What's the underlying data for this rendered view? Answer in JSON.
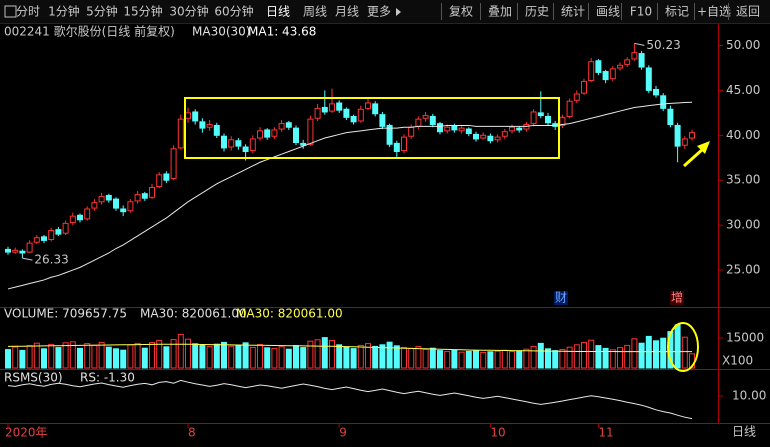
{
  "toolbar": {
    "periods": [
      "分时",
      "1分钟",
      "5分钟",
      "15分钟",
      "30分钟",
      "60分钟",
      "日线",
      "周线",
      "月线",
      "更多"
    ],
    "actions": [
      "复权",
      "叠加",
      "历史",
      "统计",
      "画线",
      "F10",
      "标记",
      "+自选",
      "返回"
    ]
  },
  "info": {
    "stock": "002241 歌尔股份(日线 前复权)",
    "ma_name": "MA30(30)",
    "ma_value": "MA1: 43.68"
  },
  "markers": [
    "财",
    "增"
  ],
  "period_label": "日线",
  "chart_data": [
    {
      "type": "candlestick",
      "up_color": "#ff3232",
      "down_color": "#54fcfc",
      "ylim": [
        21,
        50.5
      ],
      "yticks": [
        {
          "value": 25,
          "label": "25.00"
        },
        {
          "value": 30,
          "label": "30.00"
        },
        {
          "value": 35,
          "label": "35.00"
        },
        {
          "value": 40,
          "label": "40.00"
        },
        {
          "value": 45,
          "label": "45.00"
        },
        {
          "value": 50,
          "label": "50.00"
        }
      ],
      "max_label": "50.23",
      "min_label": "26.33",
      "categories": [
        "2020年",
        null,
        null,
        null,
        null,
        null,
        null,
        null,
        null,
        null,
        null,
        null,
        null,
        null,
        null,
        null,
        null,
        null,
        null,
        null,
        null,
        null,
        null,
        null,
        null,
        "8",
        null,
        null,
        null,
        null,
        null,
        null,
        null,
        null,
        null,
        null,
        null,
        null,
        null,
        null,
        null,
        null,
        null,
        null,
        null,
        null,
        "9",
        null,
        null,
        null,
        null,
        null,
        null,
        null,
        null,
        null,
        null,
        null,
        null,
        null,
        null,
        null,
        null,
        null,
        null,
        null,
        null,
        "10",
        null,
        null,
        null,
        null,
        null,
        null,
        null,
        null,
        null,
        null,
        null,
        null,
        null,
        null,
        "11",
        null,
        null,
        null,
        null,
        null,
        null,
        null,
        null,
        null,
        null,
        null,
        null,
        null
      ],
      "ohlc": [
        [
          27.3,
          27.6,
          26.7,
          27.0
        ],
        [
          27.0,
          27.5,
          26.8,
          27.2
        ],
        [
          27.1,
          27.3,
          26.33,
          26.9
        ],
        [
          27.0,
          28.3,
          26.9,
          28.0
        ],
        [
          28.1,
          28.9,
          27.9,
          28.6
        ],
        [
          28.7,
          28.9,
          28.0,
          28.3
        ],
        [
          28.4,
          29.7,
          28.2,
          29.4
        ],
        [
          29.5,
          29.8,
          28.8,
          29.0
        ],
        [
          29.1,
          30.5,
          28.9,
          30.2
        ],
        [
          30.3,
          31.4,
          30.0,
          31.0
        ],
        [
          31.1,
          31.3,
          30.3,
          30.6
        ],
        [
          30.7,
          32.1,
          30.5,
          31.8
        ],
        [
          31.9,
          32.9,
          31.6,
          32.5
        ],
        [
          32.6,
          33.6,
          32.3,
          33.2
        ],
        [
          33.3,
          33.5,
          32.5,
          32.8
        ],
        [
          32.9,
          33.1,
          31.6,
          31.9
        ],
        [
          31.8,
          32.2,
          31.0,
          31.5
        ],
        [
          31.6,
          32.9,
          31.4,
          32.6
        ],
        [
          32.7,
          33.8,
          32.4,
          33.4
        ],
        [
          33.5,
          33.7,
          32.7,
          33.0
        ],
        [
          33.1,
          34.6,
          32.9,
          34.2
        ],
        [
          34.3,
          35.9,
          34.1,
          35.6
        ],
        [
          35.7,
          36.0,
          34.7,
          35.0
        ],
        [
          35.2,
          38.9,
          35.0,
          38.5
        ],
        [
          38.6,
          42.3,
          38.4,
          41.8
        ],
        [
          41.9,
          43.1,
          41.4,
          42.5
        ],
        [
          42.6,
          42.9,
          41.2,
          41.6
        ],
        [
          41.5,
          41.9,
          40.3,
          40.8
        ],
        [
          40.9,
          41.7,
          40.5,
          41.2
        ],
        [
          41.1,
          41.4,
          39.7,
          40.0
        ],
        [
          39.9,
          40.2,
          38.2,
          38.6
        ],
        [
          38.7,
          39.9,
          38.3,
          39.5
        ],
        [
          39.4,
          39.7,
          38.4,
          38.8
        ],
        [
          38.7,
          39.0,
          37.2,
          38.2
        ],
        [
          38.3,
          40.0,
          38.0,
          39.6
        ],
        [
          39.7,
          40.9,
          39.4,
          40.5
        ],
        [
          40.6,
          40.8,
          39.5,
          39.8
        ],
        [
          39.9,
          40.9,
          39.6,
          40.6
        ],
        [
          40.7,
          41.7,
          40.4,
          41.3
        ],
        [
          41.4,
          41.6,
          40.6,
          40.9
        ],
        [
          40.8,
          41.1,
          38.9,
          39.2
        ],
        [
          39.1,
          39.5,
          38.5,
          38.9
        ],
        [
          39.0,
          42.2,
          38.8,
          41.8
        ],
        [
          41.9,
          43.5,
          41.6,
          43.0
        ],
        [
          43.1,
          45.0,
          42.3,
          42.6
        ],
        [
          42.7,
          45.2,
          42.5,
          43.5
        ],
        [
          43.6,
          43.9,
          42.5,
          42.8
        ],
        [
          42.9,
          43.1,
          41.7,
          42.0
        ],
        [
          42.1,
          42.3,
          41.2,
          41.5
        ],
        [
          41.6,
          43.3,
          41.4,
          42.9
        ],
        [
          43.0,
          44.2,
          42.8,
          43.6
        ],
        [
          43.5,
          43.8,
          42.1,
          42.4
        ],
        [
          42.3,
          42.6,
          40.7,
          41.0
        ],
        [
          41.1,
          41.3,
          38.7,
          39.0
        ],
        [
          39.1,
          39.4,
          37.6,
          38.2
        ],
        [
          38.3,
          40.1,
          38.0,
          39.8
        ],
        [
          39.9,
          41.2,
          39.6,
          40.9
        ],
        [
          41.0,
          42.1,
          40.7,
          41.8
        ],
        [
          41.9,
          42.6,
          41.5,
          42.2
        ],
        [
          42.1,
          42.4,
          40.9,
          41.2
        ],
        [
          41.3,
          41.5,
          40.1,
          40.4
        ],
        [
          40.5,
          41.2,
          40.2,
          40.9
        ],
        [
          41.0,
          41.3,
          40.3,
          40.6
        ],
        [
          40.5,
          41.1,
          40.2,
          40.8
        ],
        [
          40.7,
          40.9,
          39.9,
          40.2
        ],
        [
          40.1,
          40.4,
          39.3,
          39.6
        ],
        [
          39.7,
          40.3,
          39.5,
          40.0
        ],
        [
          39.9,
          40.2,
          39.1,
          39.4
        ],
        [
          39.5,
          40.1,
          39.2,
          39.8
        ],
        [
          39.9,
          40.7,
          39.6,
          40.4
        ],
        [
          40.5,
          41.2,
          40.2,
          40.9
        ],
        [
          40.8,
          41.0,
          40.3,
          40.6
        ],
        [
          40.7,
          41.5,
          40.4,
          41.2
        ],
        [
          41.3,
          42.9,
          41.0,
          42.6
        ],
        [
          42.5,
          44.9,
          41.9,
          42.2
        ],
        [
          42.1,
          42.5,
          41.1,
          41.4
        ],
        [
          41.3,
          41.6,
          40.6,
          41.0
        ],
        [
          41.1,
          42.3,
          40.8,
          42.0
        ],
        [
          42.1,
          44.1,
          41.9,
          43.8
        ],
        [
          43.9,
          45.0,
          43.6,
          44.6
        ],
        [
          44.7,
          46.3,
          44.5,
          46.0
        ],
        [
          46.1,
          48.6,
          45.9,
          48.2
        ],
        [
          48.3,
          48.5,
          46.7,
          47.0
        ],
        [
          47.1,
          47.3,
          45.8,
          46.2
        ],
        [
          46.3,
          47.7,
          46.0,
          47.4
        ],
        [
          47.5,
          48.1,
          47.2,
          47.8
        ],
        [
          47.9,
          48.7,
          47.6,
          48.4
        ],
        [
          48.5,
          50.23,
          48.3,
          49.2
        ],
        [
          49.1,
          49.4,
          47.3,
          47.6
        ],
        [
          47.5,
          47.8,
          44.7,
          45.0
        ],
        [
          45.1,
          45.5,
          44.2,
          44.5
        ],
        [
          44.4,
          44.7,
          42.7,
          43.0
        ],
        [
          42.9,
          43.3,
          40.9,
          41.2
        ],
        [
          41.1,
          41.4,
          37.0,
          38.8
        ],
        [
          38.9,
          39.9,
          38.5,
          39.6
        ],
        [
          39.7,
          40.6,
          39.4,
          40.3
        ]
      ],
      "series": [
        {
          "color": "#e8e8e8",
          "values": [
            22.9,
            23.1,
            23.3,
            23.5,
            23.7,
            23.9,
            24.2,
            24.4,
            24.7,
            25.0,
            25.3,
            25.7,
            26.1,
            26.5,
            26.9,
            27.4,
            27.8,
            28.3,
            28.8,
            29.3,
            29.8,
            30.3,
            30.8,
            31.4,
            32.0,
            32.6,
            33.1,
            33.6,
            34.1,
            34.6,
            35.0,
            35.4,
            35.8,
            36.2,
            36.6,
            37.0,
            37.3,
            37.6,
            37.9,
            38.2,
            38.5,
            38.8,
            39.1,
            39.4,
            39.7,
            39.9,
            40.1,
            40.3,
            40.4,
            40.5,
            40.6,
            40.7,
            40.8,
            40.8,
            40.8,
            40.9,
            40.9,
            41.0,
            41.0,
            41.0,
            41.0,
            41.1,
            41.1,
            41.1,
            41.1,
            41.0,
            41.0,
            41.0,
            41.0,
            41.0,
            41.0,
            41.0,
            41.0,
            41.1,
            41.1,
            41.1,
            41.1,
            41.2,
            41.3,
            41.5,
            41.7,
            41.9,
            42.1,
            42.3,
            42.5,
            42.7,
            42.9,
            43.1,
            43.2,
            43.3,
            43.4,
            43.5,
            43.55,
            43.6,
            43.65,
            43.68
          ]
        }
      ]
    },
    {
      "type": "bar",
      "title": "VOLUME: 709657.75",
      "ma_labels": [
        "MA30: 820061.00",
        "MA30: 820061.00"
      ],
      "unit": "X100",
      "ylim": [
        0,
        25000
      ],
      "yticks": [
        15000
      ],
      "values": [
        9200,
        10500,
        8800,
        11200,
        12400,
        9600,
        11800,
        10200,
        12600,
        13100,
        9800,
        12200,
        11400,
        12800,
        10400,
        9600,
        8900,
        11600,
        12300,
        9900,
        12700,
        13800,
        10600,
        14200,
        16800,
        14400,
        12100,
        11300,
        10700,
        11900,
        12800,
        10900,
        11400,
        12600,
        10300,
        11700,
        10100,
        9800,
        10600,
        9400,
        11200,
        10200,
        13400,
        14100,
        15200,
        13800,
        11600,
        10400,
        9700,
        11300,
        12200,
        10800,
        11600,
        12900,
        11100,
        10300,
        9800,
        10700,
        9300,
        9900,
        8700,
        8200,
        8800,
        7900,
        8300,
        8600,
        7800,
        8100,
        8400,
        8900,
        8200,
        8600,
        9400,
        10800,
        12300,
        9600,
        8700,
        9200,
        10400,
        11600,
        12800,
        13900,
        11200,
        9800,
        9100,
        10200,
        11300,
        14600,
        12400,
        15800,
        13600,
        14900,
        18200,
        21600,
        15400,
        7096
      ],
      "series": [
        {
          "color": "#ffff54",
          "values": [
            10800,
            10850,
            10900,
            10950,
            11000,
            11050,
            11100,
            11150,
            11200,
            11250,
            11300,
            11350,
            11400,
            11450,
            11500,
            11550,
            11600,
            11650,
            11700,
            11750,
            11800,
            11850,
            11900,
            11900,
            11900,
            11850,
            11800,
            11750,
            11700,
            11650,
            11600,
            11550,
            11500,
            11450,
            11400,
            11350,
            11300,
            11250,
            11200,
            11150,
            11100,
            11050,
            11000,
            10950,
            10900,
            10850,
            10800,
            10700,
            10600,
            10500,
            10400,
            10300,
            10200,
            10100,
            10000,
            9900,
            9800,
            9700,
            9600,
            9500,
            9400,
            9300,
            9200,
            9100,
            9000,
            8950,
            8900,
            8850,
            8800,
            8750,
            8700,
            8650,
            8600,
            8550,
            8500,
            8450,
            8400,
            8350,
            8300,
            8280,
            8260,
            8250,
            8240,
            8230,
            8220,
            8215,
            8210,
            8208,
            8206,
            8205,
            8204,
            8203,
            8202,
            8201,
            8200.8,
            8200.61
          ]
        }
      ]
    },
    {
      "type": "line",
      "title": "RSMS(30)",
      "value_label": "RS: -1.30",
      "color": "#e8e8e8",
      "ylim": [
        -2,
        23
      ],
      "yticks": [
        {
          "value": 10,
          "label": "10.00"
        }
      ],
      "values": [
        15.2,
        14.8,
        15.6,
        16.1,
        15.4,
        14.9,
        15.8,
        16.4,
        15.9,
        15.1,
        14.6,
        15.3,
        16.0,
        16.5,
        15.7,
        15.0,
        14.4,
        15.2,
        15.9,
        16.3,
        15.6,
        16.8,
        17.2,
        16.4,
        17.8,
        16.9,
        16.1,
        15.5,
        14.8,
        15.4,
        16.2,
        15.6,
        14.9,
        14.2,
        14.8,
        15.5,
        15.1,
        14.5,
        13.9,
        14.6,
        15.3,
        16.0,
        15.4,
        14.7,
        13.8,
        13.2,
        13.9,
        14.5,
        13.7,
        12.9,
        12.2,
        12.8,
        13.5,
        12.7,
        11.9,
        11.2,
        11.8,
        12.4,
        11.6,
        10.9,
        10.3,
        10.9,
        11.5,
        10.8,
        10.1,
        9.4,
        8.8,
        9.3,
        9.9,
        9.2,
        8.5,
        7.8,
        7.1,
        6.4,
        5.8,
        6.3,
        6.9,
        7.5,
        8.2,
        8.8,
        9.5,
        10.1,
        9.6,
        9.0,
        8.4,
        7.7,
        6.9,
        6.2,
        5.4,
        4.3,
        3.1,
        2.2,
        1.5,
        0.4,
        -0.6,
        -1.3
      ]
    }
  ]
}
